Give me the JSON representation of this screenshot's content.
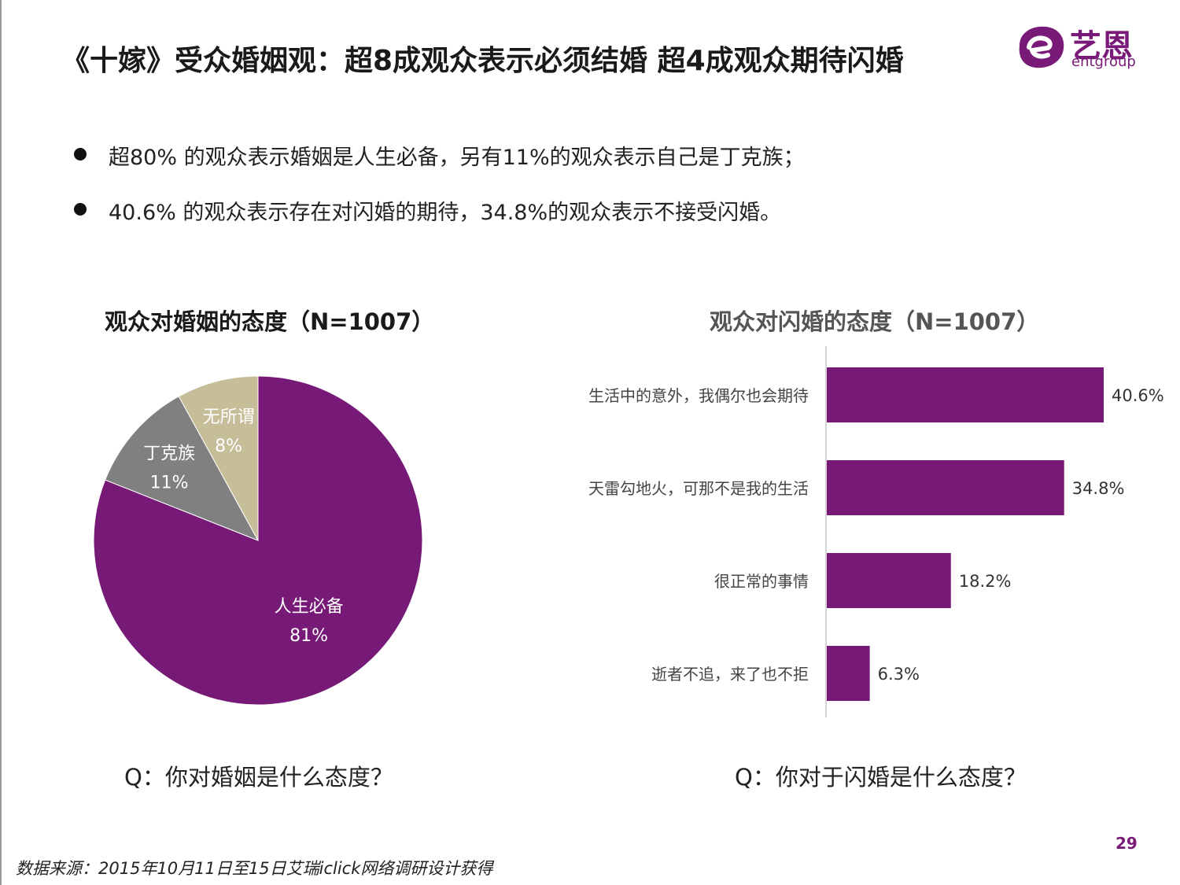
{
  "header": {
    "title": "《十嫁》受众婚姻观：超8成观众表示必须结婚  超4成观众期待闪婚",
    "logo_cn": "艺恩",
    "logo_en": "entgroup"
  },
  "bullets": [
    "超80% 的观众表示婚姻是人生必备，另有11%的观众表示自己是丁克族；",
    "40.6% 的观众表示存在对闪婚的期待，34.8%的观众表示不接受闪婚。"
  ],
  "chart_data": [
    {
      "type": "pie",
      "title": "观众对婚姻的态度（N=1007）",
      "slices": [
        {
          "label": "人生必备",
          "value": 81,
          "value_label": "81%",
          "color": "#771a77"
        },
        {
          "label": "丁克族",
          "value": 11,
          "value_label": "11%",
          "color": "#808080"
        },
        {
          "label": "无所谓",
          "value": 8,
          "value_label": "8%",
          "color": "#c6bd99"
        }
      ],
      "question": "Q：你对婚姻是什么态度？"
    },
    {
      "type": "bar",
      "orientation": "horizontal",
      "title": "观众对闪婚的态度（N=1007）",
      "categories": [
        "生活中的意外，我偶尔也会期待",
        "天雷勾地火，可那不是我的生活",
        "很正常的事情",
        "逝者不追，来了也不拒"
      ],
      "values": [
        40.6,
        34.8,
        18.2,
        6.3
      ],
      "value_labels": [
        "40.6%",
        "34.8%",
        "18.2%",
        "6.3%"
      ],
      "color": "#771a77",
      "xlim": [
        0,
        40.6
      ],
      "question": "Q：你对于闪婚是什么态度？"
    }
  ],
  "footer": {
    "page_number": "29",
    "source": "数据来源：2015年10月11日至15日艾瑞iclick网络调研设计获得"
  }
}
